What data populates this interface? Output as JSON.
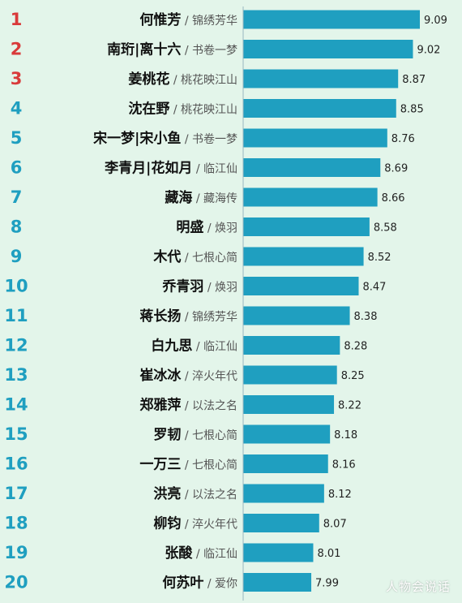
{
  "chart_data": {
    "type": "bar",
    "orientation": "horizontal",
    "grid": false,
    "xlim": [
      7.3,
      9.2
    ],
    "colors": {
      "bar": "#1f9fc0",
      "rank_top3": "#d93a3a",
      "rank_other": "#1f9fc0",
      "name": "#111111",
      "drama": "#555555"
    },
    "rows": [
      {
        "rank": "1",
        "name": "何惟芳",
        "drama": "锦绣芳华",
        "value": 9.09,
        "label": "9.09"
      },
      {
        "rank": "2",
        "name": "南珩|离十六",
        "drama": "书卷一梦",
        "value": 9.02,
        "label": "9.02"
      },
      {
        "rank": "3",
        "name": "姜桃花",
        "drama": "桃花映江山",
        "value": 8.87,
        "label": "8.87"
      },
      {
        "rank": "4",
        "name": "沈在野",
        "drama": "桃花映江山",
        "value": 8.85,
        "label": "8.85"
      },
      {
        "rank": "5",
        "name": "宋一梦|宋小鱼",
        "drama": "书卷一梦",
        "value": 8.76,
        "label": "8.76"
      },
      {
        "rank": "6",
        "name": "李青月|花如月",
        "drama": "临江仙",
        "value": 8.69,
        "label": "8.69"
      },
      {
        "rank": "7",
        "name": "藏海",
        "drama": "藏海传",
        "value": 8.66,
        "label": "8.66"
      },
      {
        "rank": "8",
        "name": "明盛",
        "drama": "焕羽",
        "value": 8.58,
        "label": "8.58"
      },
      {
        "rank": "9",
        "name": "木代",
        "drama": "七根心简",
        "value": 8.52,
        "label": "8.52"
      },
      {
        "rank": "10",
        "name": "乔青羽",
        "drama": "焕羽",
        "value": 8.47,
        "label": "8.47"
      },
      {
        "rank": "11",
        "name": "蒋长扬",
        "drama": "锦绣芳华",
        "value": 8.38,
        "label": "8.38"
      },
      {
        "rank": "12",
        "name": "白九思",
        "drama": "临江仙",
        "value": 8.28,
        "label": "8.28"
      },
      {
        "rank": "13",
        "name": "崔冰冰",
        "drama": "淬火年代",
        "value": 8.25,
        "label": "8.25"
      },
      {
        "rank": "14",
        "name": "郑雅萍",
        "drama": "以法之名",
        "value": 8.22,
        "label": "8.22"
      },
      {
        "rank": "15",
        "name": "罗韧",
        "drama": "七根心简",
        "value": 8.18,
        "label": "8.18"
      },
      {
        "rank": "16",
        "name": "一万三",
        "drama": "七根心简",
        "value": 8.16,
        "label": "8.16"
      },
      {
        "rank": "17",
        "name": "洪亮",
        "drama": "以法之名",
        "value": 8.12,
        "label": "8.12"
      },
      {
        "rank": "18",
        "name": "柳钧",
        "drama": "淬火年代",
        "value": 8.07,
        "label": "8.07"
      },
      {
        "rank": "19",
        "name": "张酸",
        "drama": "临江仙",
        "value": 8.01,
        "label": "8.01"
      },
      {
        "rank": "20",
        "name": "何苏叶",
        "drama": "爱你",
        "value": 7.99,
        "label": "7.99"
      }
    ]
  },
  "watermark": "人物会说话"
}
